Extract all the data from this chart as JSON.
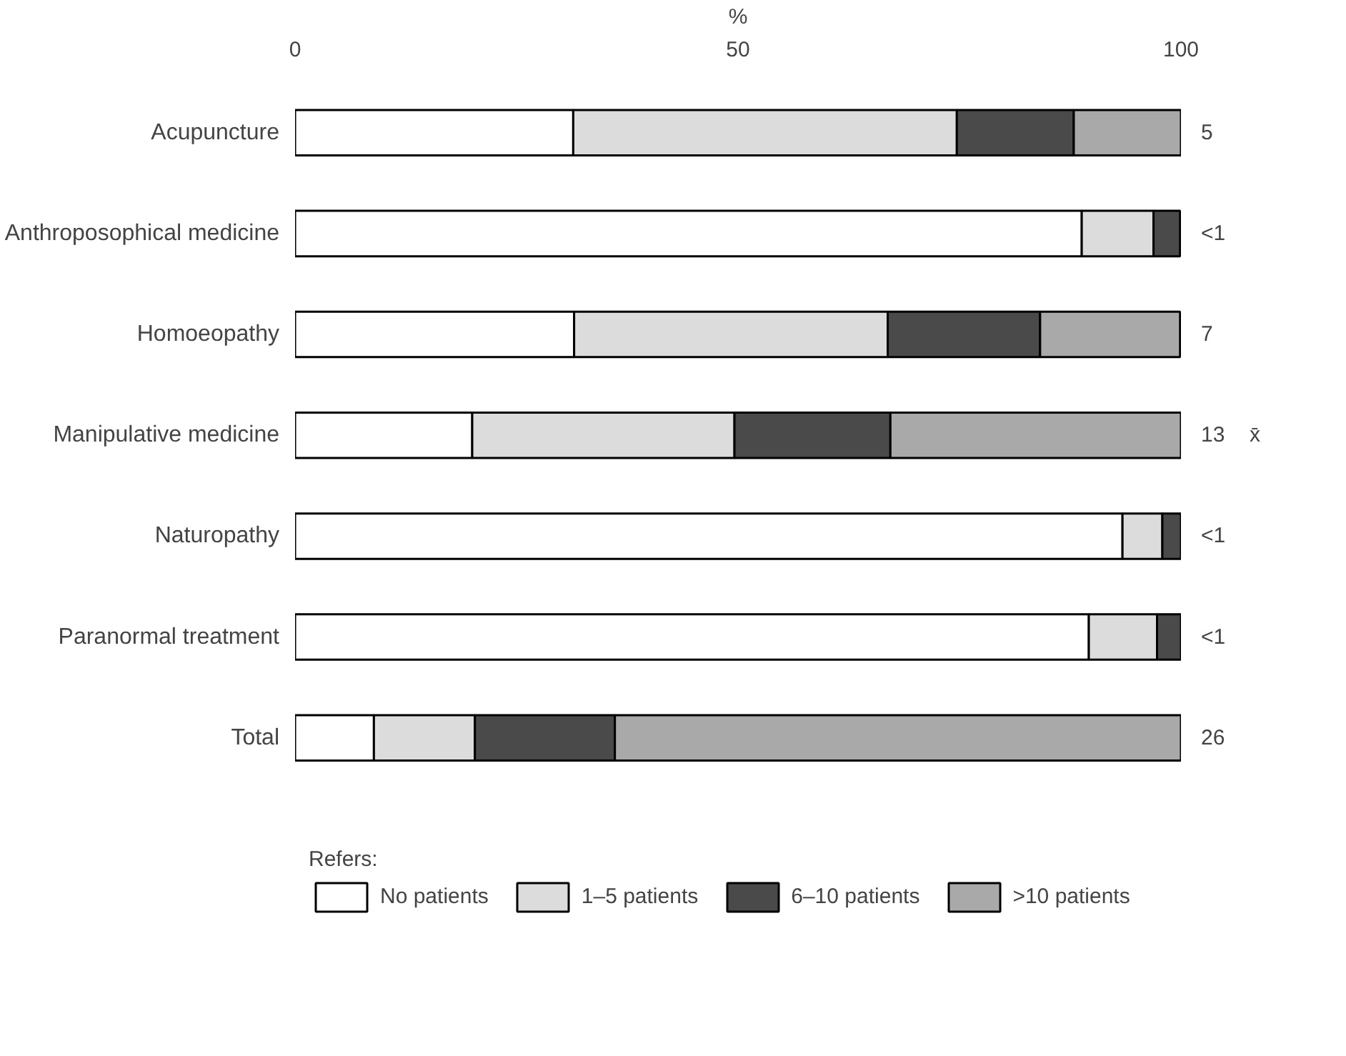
{
  "chart_data": {
    "type": "bar",
    "orientation": "horizontal",
    "stacked": true,
    "xlabel": "%",
    "legend_title": "Refers:",
    "legend": "bottom",
    "grid": false,
    "categories": [
      "Acupuncture",
      "Anthroposophical medicine",
      "Homoeopathy",
      "Manipulative medicine",
      "Naturopathy",
      "Paranormal treatment",
      "Total"
    ],
    "xlim": [
      0,
      100
    ],
    "xticks": [
      0,
      50,
      100
    ],
    "series": [
      {
        "name": "No patients",
        "color": "#ffffff",
        "values": [
          31.4,
          88.8,
          31.5,
          20,
          93.4,
          89.6,
          8.9
        ]
      },
      {
        "name": "1–5 patients",
        "color": "#dcdcdc",
        "values": [
          43.3,
          8.1,
          35.4,
          29.6,
          4.5,
          7.7,
          11.4
        ]
      },
      {
        "name": "6–10 patients",
        "color": "#4a4a4a",
        "values": [
          13.2,
          3.0,
          17.2,
          17.6,
          2.1,
          2.7,
          15.8
        ]
      },
      {
        "name": ">10 patients",
        "color": "#a9a9a9",
        "values": [
          12.1,
          0,
          15.8,
          32.8,
          0,
          0,
          63.9
        ]
      }
    ],
    "annotations": [
      "5",
      "<1",
      "7",
      "13",
      "<1",
      "<1",
      "26",
      "x̄"
    ]
  }
}
